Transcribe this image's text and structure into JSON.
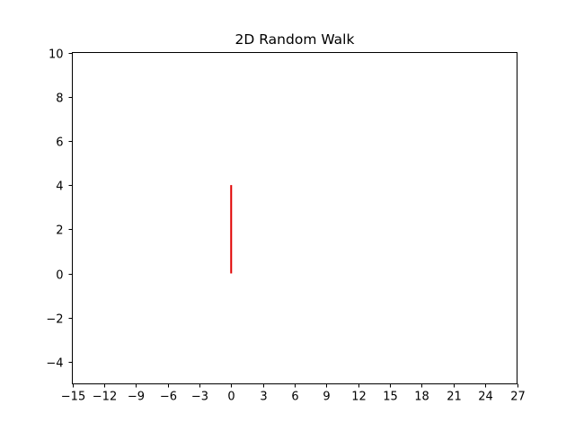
{
  "chart_data": {
    "type": "line",
    "title": "2D Random Walk",
    "xlabel": "",
    "ylabel": "",
    "xlim": [
      -15,
      27
    ],
    "ylim": [
      -5,
      10
    ],
    "x_ticks": [
      "−15",
      "−12",
      "−9",
      "−6",
      "−3",
      "0",
      "3",
      "6",
      "9",
      "12",
      "15",
      "18",
      "21",
      "24",
      "27"
    ],
    "y_ticks": [
      "−4",
      "−2",
      "0",
      "2",
      "4",
      "6",
      "8",
      "10"
    ],
    "grid": false,
    "series": [
      {
        "color": "#e00000",
        "x": [
          0,
          0,
          0,
          0,
          0
        ],
        "y": [
          0,
          1,
          2,
          3,
          4
        ]
      }
    ]
  }
}
